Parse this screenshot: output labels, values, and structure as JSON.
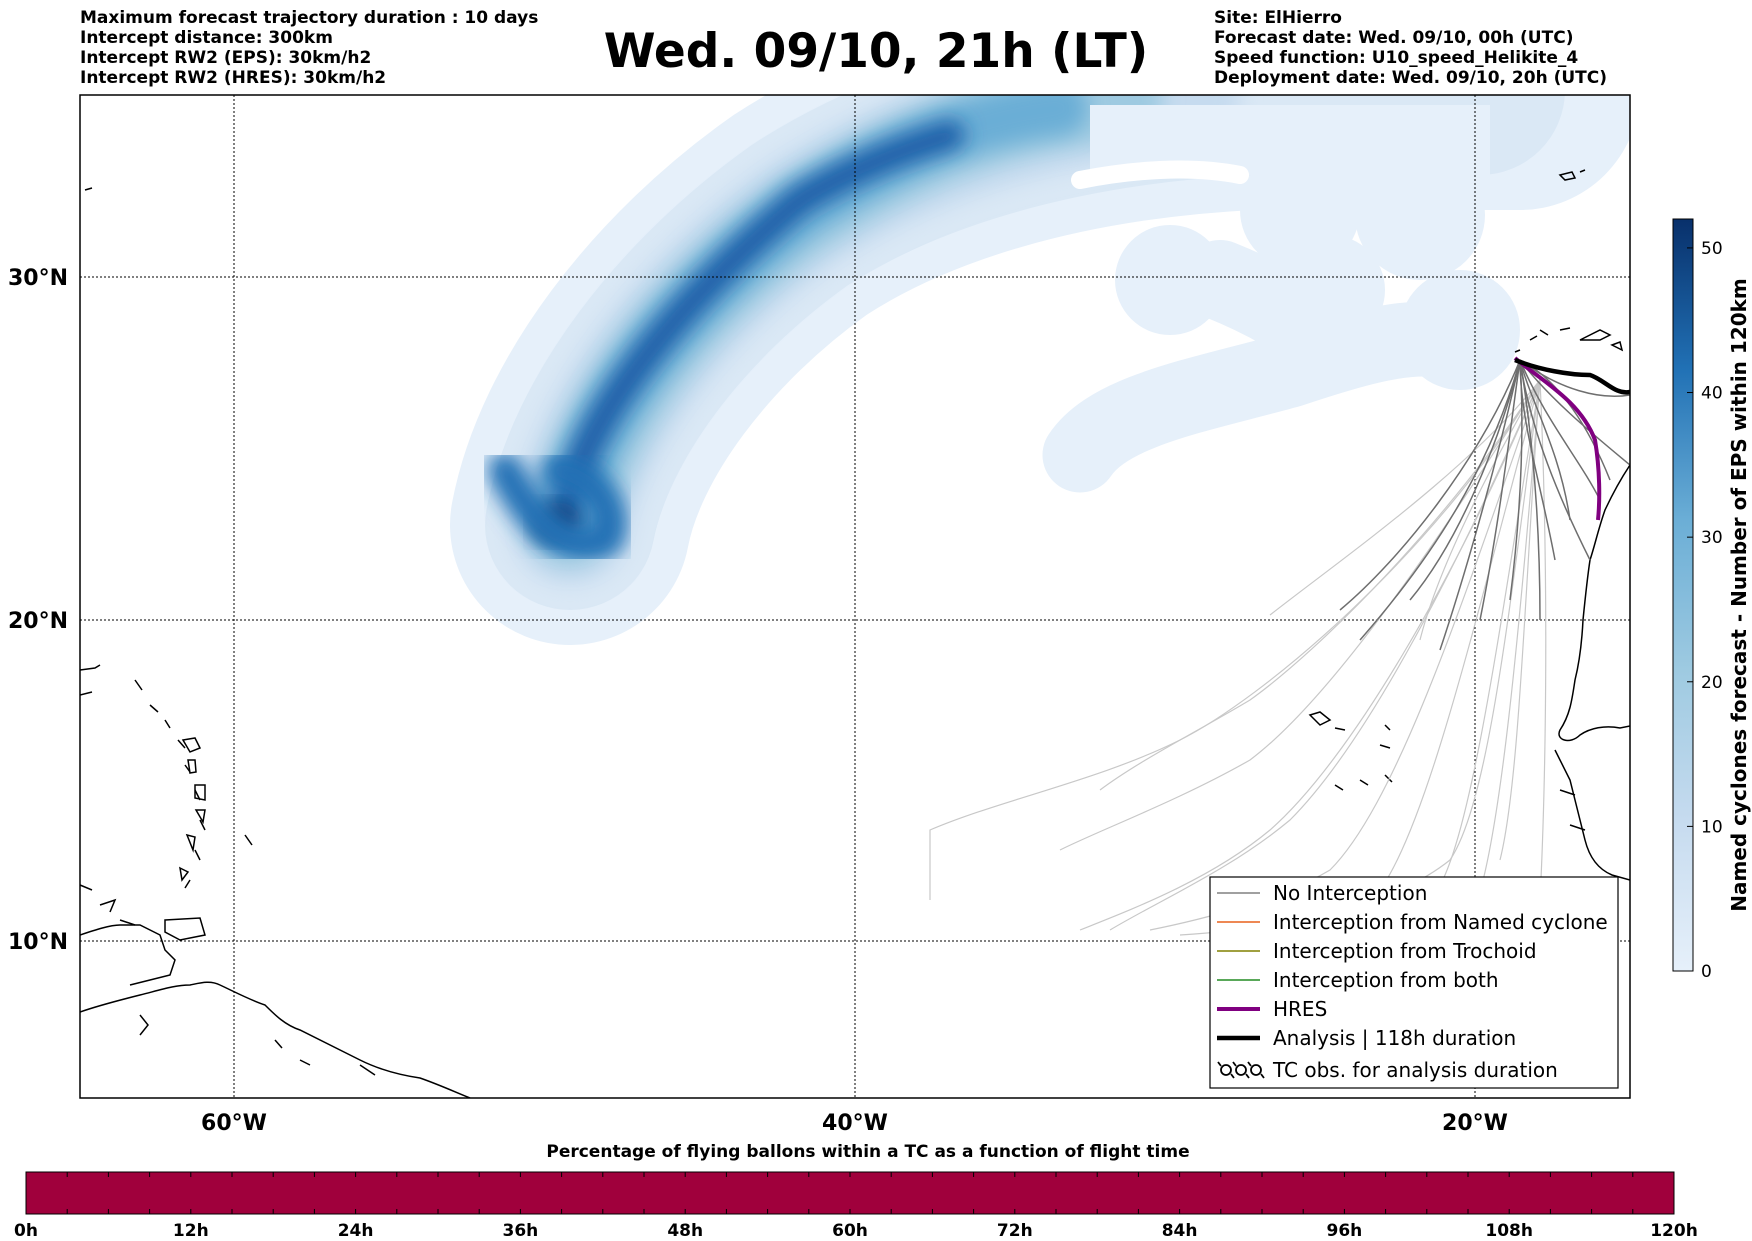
{
  "header": {
    "title": "Wed. 09/10, 21h (LT)",
    "left_lines": [
      "Maximum forecast trajectory duration : 10 days",
      "Intercept distance: 300km",
      "Intercept RW2 (EPS):  30km/h2",
      "Intercept RW2 (HRES): 30km/h2"
    ],
    "right_lines": [
      "Site: ElHierro",
      "Forecast date: Wed. 09/10, 00h (UTC)",
      "Speed function: U10_speed_Helikite_4",
      "Deployment date: Wed. 09/10, 20h (UTC)"
    ]
  },
  "map": {
    "lat_ticks": [
      {
        "value": 30,
        "label": "30°N"
      },
      {
        "value": 20,
        "label": "20°N"
      },
      {
        "value": 10,
        "label": "10°N"
      }
    ],
    "lon_ticks": [
      {
        "value": -60,
        "label": "60°W"
      },
      {
        "value": -40,
        "label": "40°W"
      },
      {
        "value": -20,
        "label": "20°W"
      }
    ],
    "extent": {
      "lon_min": -65,
      "lon_max": -15,
      "lat_min": 4.6,
      "lat_max": 35.3
    },
    "grid": true
  },
  "colorbar": {
    "label": "Named cyclones forecast - Number of EPS within 120km",
    "min": 0,
    "max": 52,
    "ticks": [
      {
        "value": 0,
        "label": "0"
      },
      {
        "value": 10,
        "label": "10"
      },
      {
        "value": 20,
        "label": "20"
      },
      {
        "value": 30,
        "label": "30"
      },
      {
        "value": 40,
        "label": "40"
      },
      {
        "value": 50,
        "label": "50"
      }
    ],
    "colors": {
      "low": "#e6f0fa",
      "mid": "#6baed6",
      "high": "#08306b"
    }
  },
  "legend": {
    "items": [
      {
        "label": "No Interception",
        "color": "#808080",
        "style": "thin"
      },
      {
        "label": "Interception from Named cyclone",
        "color": "#e8601c",
        "style": "thin"
      },
      {
        "label": "Interception from Trochoid",
        "color": "#808000",
        "style": "thin"
      },
      {
        "label": "Interception from both",
        "color": "#228b22",
        "style": "thin"
      },
      {
        "label": "HRES",
        "color": "#800080",
        "style": "thick"
      },
      {
        "label": "Analysis | 118h duration",
        "color": "#000000",
        "style": "thick"
      },
      {
        "label": "TC obs. for analysis duration",
        "color": "#000000",
        "style": "symbol"
      }
    ]
  },
  "bottom_bar": {
    "title": "Percentage of flying ballons within a TC as a function of flight time",
    "color": "#a0003c",
    "ticks": [
      "0h",
      "12h",
      "24h",
      "36h",
      "48h",
      "60h",
      "72h",
      "84h",
      "96h",
      "108h",
      "120h"
    ]
  }
}
